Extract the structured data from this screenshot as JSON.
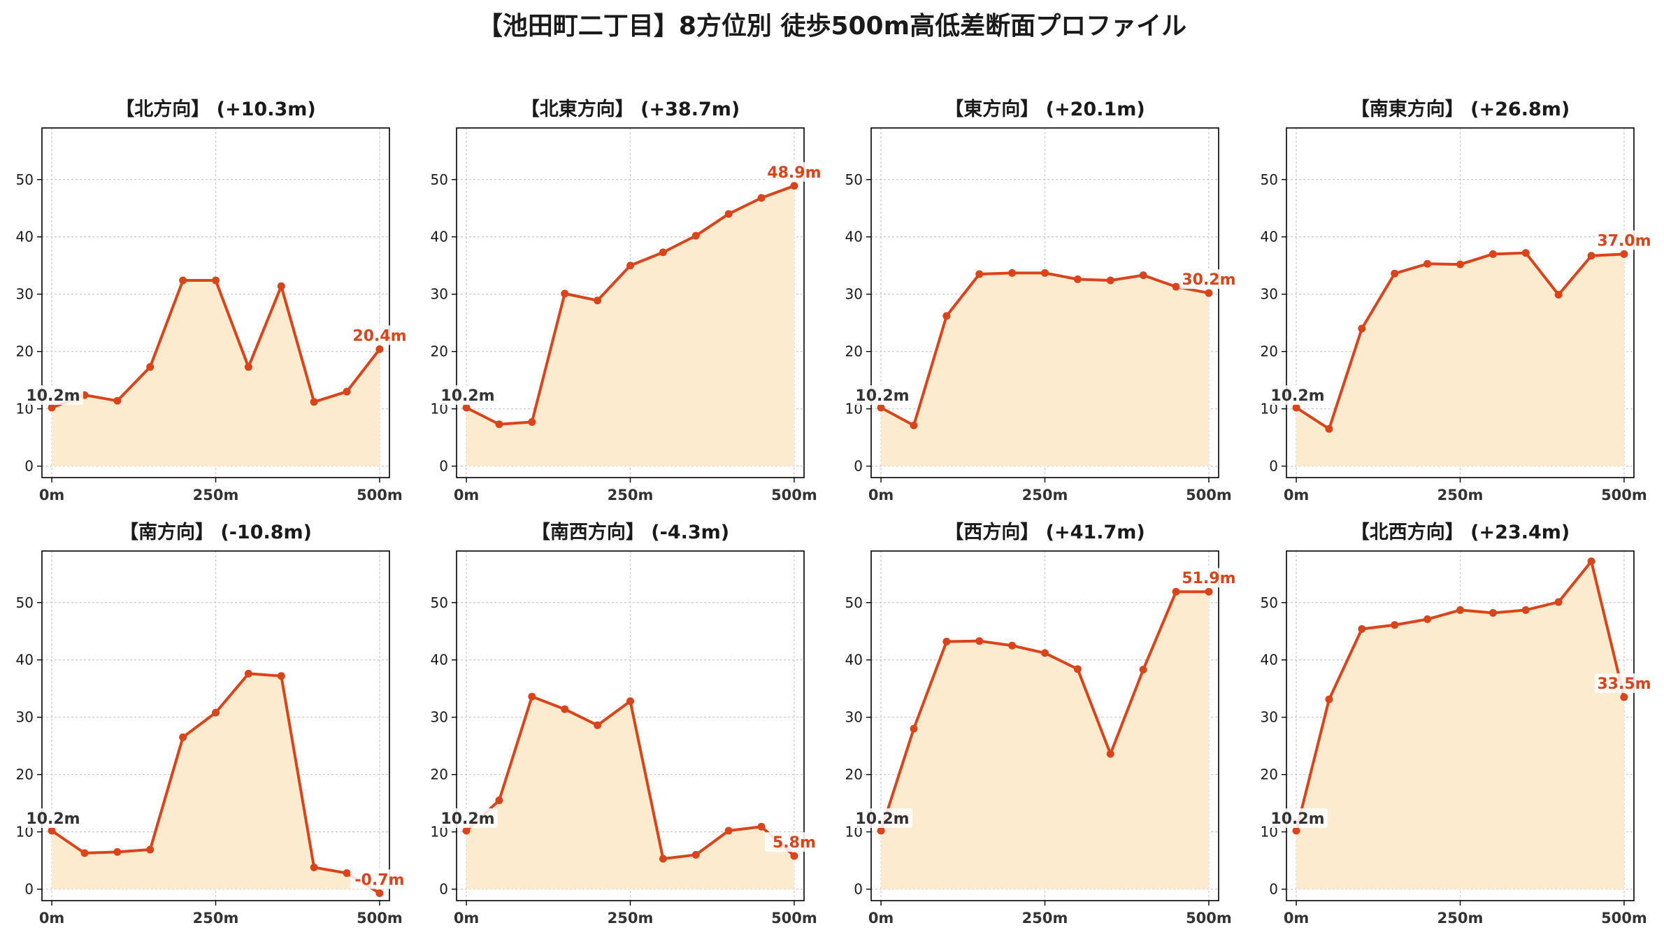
{
  "title": "【池田町二丁目】8方位別 徒歩500m高低差断面プロファイル",
  "colors": {
    "line": "#d9441a",
    "fill": "#fdebd0",
    "start_label": "#333333",
    "end_label": "#d9441a",
    "grid": "#c8c8c8",
    "axis": "#000000"
  },
  "chart_data": [
    {
      "type": "area",
      "title": "【北方向】 (+10.3m)",
      "x": [
        0,
        50,
        100,
        150,
        200,
        250,
        300,
        350,
        400,
        450,
        500
      ],
      "values": [
        10.2,
        12.4,
        11.4,
        17.3,
        32.4,
        32.4,
        17.3,
        31.4,
        11.2,
        13.0,
        20.4
      ],
      "start_label": "10.2m",
      "end_label": "20.4m",
      "xticks": [
        "0m",
        "250m",
        "500m"
      ],
      "yticks": [
        0,
        10,
        20,
        30,
        40,
        50
      ],
      "ylim": [
        -2,
        59
      ],
      "grid": true
    },
    {
      "type": "area",
      "title": "【北東方向】 (+38.7m)",
      "x": [
        0,
        50,
        100,
        150,
        200,
        250,
        300,
        350,
        400,
        450,
        500
      ],
      "values": [
        10.2,
        7.3,
        7.7,
        30.1,
        28.9,
        35.0,
        37.3,
        40.2,
        44.0,
        46.8,
        48.9
      ],
      "start_label": "10.2m",
      "end_label": "48.9m",
      "xticks": [
        "0m",
        "250m",
        "500m"
      ],
      "yticks": [
        0,
        10,
        20,
        30,
        40,
        50
      ],
      "ylim": [
        -2,
        59
      ],
      "grid": true
    },
    {
      "type": "area",
      "title": "【東方向】 (+20.1m)",
      "x": [
        0,
        50,
        100,
        150,
        200,
        250,
        300,
        350,
        400,
        450,
        500
      ],
      "values": [
        10.2,
        7.1,
        26.2,
        33.5,
        33.7,
        33.7,
        32.6,
        32.4,
        33.3,
        31.3,
        30.2
      ],
      "start_label": "10.2m",
      "end_label": "30.2m",
      "xticks": [
        "0m",
        "250m",
        "500m"
      ],
      "yticks": [
        0,
        10,
        20,
        30,
        40,
        50
      ],
      "ylim": [
        -2,
        59
      ],
      "grid": true
    },
    {
      "type": "area",
      "title": "【南東方向】 (+26.8m)",
      "x": [
        0,
        50,
        100,
        150,
        200,
        250,
        300,
        350,
        400,
        450,
        500
      ],
      "values": [
        10.2,
        6.5,
        24.0,
        33.6,
        35.3,
        35.2,
        37.0,
        37.2,
        29.9,
        36.7,
        37.0
      ],
      "start_label": "10.2m",
      "end_label": "37.0m",
      "xticks": [
        "0m",
        "250m",
        "500m"
      ],
      "yticks": [
        0,
        10,
        20,
        30,
        40,
        50
      ],
      "ylim": [
        -2,
        59
      ],
      "grid": true
    },
    {
      "type": "area",
      "title": "【南方向】 (-10.8m)",
      "x": [
        0,
        50,
        100,
        150,
        200,
        250,
        300,
        350,
        400,
        450,
        500
      ],
      "values": [
        10.2,
        6.3,
        6.5,
        6.9,
        26.5,
        30.8,
        37.6,
        37.2,
        3.8,
        2.8,
        -0.7
      ],
      "start_label": "10.2m",
      "end_label": "-0.7m",
      "xticks": [
        "0m",
        "250m",
        "500m"
      ],
      "yticks": [
        0,
        10,
        20,
        30,
        40,
        50
      ],
      "ylim": [
        -2,
        59
      ],
      "grid": true
    },
    {
      "type": "area",
      "title": "【南西方向】 (-4.3m)",
      "x": [
        0,
        50,
        100,
        150,
        200,
        250,
        300,
        350,
        400,
        450,
        500
      ],
      "values": [
        10.2,
        15.5,
        33.6,
        31.4,
        28.6,
        32.8,
        5.3,
        6.0,
        10.2,
        10.9,
        5.8
      ],
      "start_label": "10.2m",
      "end_label": "5.8m",
      "xticks": [
        "0m",
        "250m",
        "500m"
      ],
      "yticks": [
        0,
        10,
        20,
        30,
        40,
        50
      ],
      "ylim": [
        -2,
        59
      ],
      "grid": true
    },
    {
      "type": "area",
      "title": "【西方向】 (+41.7m)",
      "x": [
        0,
        50,
        100,
        150,
        200,
        250,
        300,
        350,
        400,
        450,
        500
      ],
      "values": [
        10.2,
        28.0,
        43.2,
        43.3,
        42.5,
        41.2,
        38.4,
        23.6,
        38.3,
        51.9,
        51.9
      ],
      "start_label": "10.2m",
      "end_label": "51.9m",
      "xticks": [
        "0m",
        "250m",
        "500m"
      ],
      "yticks": [
        0,
        10,
        20,
        30,
        40,
        50
      ],
      "ylim": [
        -2,
        59
      ],
      "grid": true
    },
    {
      "type": "area",
      "title": "【北西方向】 (+23.4m)",
      "x": [
        0,
        50,
        100,
        150,
        200,
        250,
        300,
        350,
        400,
        450,
        500
      ],
      "values": [
        10.2,
        33.1,
        45.4,
        46.1,
        47.1,
        48.7,
        48.2,
        48.7,
        50.1,
        57.2,
        33.5
      ],
      "start_label": "10.2m",
      "end_label": "33.5m",
      "xticks": [
        "0m",
        "250m",
        "500m"
      ],
      "yticks": [
        0,
        10,
        20,
        30,
        40,
        50
      ],
      "ylim": [
        -2,
        59
      ],
      "grid": true
    }
  ]
}
